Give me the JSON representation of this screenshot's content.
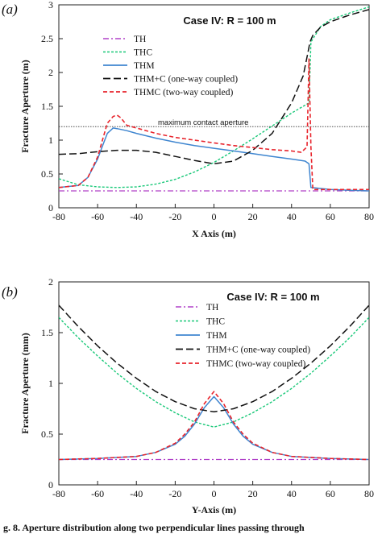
{
  "caption": "g. 8. Aperture distribution along two perpendicular lines passing through",
  "series_styles": [
    {
      "key": "TH",
      "color": "#b040c8",
      "dash": "7,3,2,3",
      "width": 1.2
    },
    {
      "key": "THC",
      "color": "#18c878",
      "dash": "3,2",
      "width": 1.4
    },
    {
      "key": "THM",
      "color": "#3f86d0",
      "dash": "",
      "width": 1.5
    },
    {
      "key": "THM+C",
      "color": "#111111",
      "dash": "9,4",
      "width": 1.5
    },
    {
      "key": "THMC",
      "color": "#e8242c",
      "dash": "5,3",
      "width": 1.6
    }
  ],
  "chart_data": [
    {
      "type": "line",
      "panel_label": "(a)",
      "title": "Case IV: R = 100 m",
      "xlabel": "X Axis (m)",
      "ylabel": "Fracture Aperture (m)",
      "xlim": [
        -80,
        80
      ],
      "ylim": [
        0,
        3
      ],
      "xticks": [
        -80,
        -60,
        -40,
        -20,
        0,
        20,
        40,
        60,
        80
      ],
      "yticks": [
        0,
        0.5,
        1,
        1.5,
        2,
        2.5,
        3
      ],
      "ytick_labels": [
        "0",
        "0.5",
        "1",
        "1.5",
        "2",
        "2.5",
        "3"
      ],
      "grid": false,
      "legend_position": "upper-left",
      "annotations": [
        {
          "text": "maximum contact aperture",
          "y": 1.2
        }
      ],
      "series": [
        {
          "name": "TH",
          "x": [
            -80,
            80
          ],
          "y": [
            0.25,
            0.25
          ]
        },
        {
          "name": "THC",
          "x": [
            -80,
            -70,
            -60,
            -50,
            -40,
            -30,
            -20,
            -10,
            0,
            10,
            20,
            30,
            40,
            49,
            50,
            55,
            60,
            70,
            80
          ],
          "y": [
            0.43,
            0.34,
            0.31,
            0.3,
            0.31,
            0.35,
            0.42,
            0.53,
            0.67,
            0.84,
            1.02,
            1.21,
            1.4,
            1.55,
            2.45,
            2.68,
            2.78,
            2.88,
            2.97
          ]
        },
        {
          "name": "THM",
          "x": [
            -80,
            -70,
            -65,
            -60,
            -57,
            -55,
            -52,
            -50,
            -45,
            -40,
            -30,
            -20,
            -10,
            0,
            10,
            20,
            30,
            40,
            47,
            49,
            50,
            60,
            70,
            80
          ],
          "y": [
            0.3,
            0.33,
            0.45,
            0.72,
            0.95,
            1.1,
            1.18,
            1.17,
            1.14,
            1.1,
            1.03,
            0.97,
            0.92,
            0.88,
            0.84,
            0.8,
            0.76,
            0.72,
            0.69,
            0.65,
            0.3,
            0.27,
            0.26,
            0.25
          ]
        },
        {
          "name": "THM+C (one-way coupled)",
          "x": [
            -80,
            -70,
            -60,
            -50,
            -40,
            -30,
            -20,
            -10,
            0,
            10,
            20,
            30,
            40,
            46,
            48.5,
            49.5,
            51,
            55,
            60,
            70,
            80
          ],
          "y": [
            0.79,
            0.8,
            0.83,
            0.85,
            0.85,
            0.82,
            0.76,
            0.7,
            0.65,
            0.69,
            0.85,
            1.1,
            1.55,
            1.95,
            2.3,
            2.45,
            2.55,
            2.67,
            2.75,
            2.85,
            2.93
          ]
        },
        {
          "name": "THMC (two-way coupled)",
          "x": [
            -80,
            -70,
            -65,
            -60,
            -57,
            -55,
            -52,
            -50,
            -48,
            -45,
            -40,
            -30,
            -20,
            -10,
            0,
            10,
            20,
            30,
            40,
            45,
            48,
            49,
            50,
            51,
            60,
            70,
            80
          ],
          "y": [
            0.3,
            0.33,
            0.45,
            0.75,
            1.05,
            1.25,
            1.35,
            1.37,
            1.33,
            1.22,
            1.18,
            1.1,
            1.04,
            1.0,
            0.96,
            0.92,
            0.89,
            0.86,
            0.84,
            0.82,
            0.9,
            2.2,
            0.9,
            0.27,
            0.27,
            0.27,
            0.27
          ]
        }
      ]
    },
    {
      "type": "line",
      "panel_label": "(b)",
      "title": "Case IV: R = 100 m",
      "xlabel": "Y-Axis (m)",
      "ylabel": "Fracture Aperture (mm)",
      "xlim": [
        -80,
        80
      ],
      "ylim": [
        0,
        2
      ],
      "xticks": [
        -80,
        -60,
        -40,
        -20,
        0,
        20,
        40,
        60,
        80
      ],
      "yticks": [
        0,
        0.5,
        1,
        1.5,
        2
      ],
      "ytick_labels": [
        "0",
        "0.5",
        "1",
        "1.5",
        "2"
      ],
      "grid": false,
      "legend_position": "upper-center",
      "annotations": [],
      "series": [
        {
          "name": "TH",
          "x": [
            -80,
            80
          ],
          "y": [
            0.25,
            0.25
          ]
        },
        {
          "name": "THC",
          "x": [
            -80,
            -70,
            -60,
            -50,
            -40,
            -30,
            -20,
            -10,
            0,
            10,
            20,
            30,
            40,
            50,
            60,
            70,
            80
          ],
          "y": [
            1.65,
            1.45,
            1.27,
            1.1,
            0.95,
            0.82,
            0.71,
            0.62,
            0.57,
            0.62,
            0.71,
            0.82,
            0.95,
            1.1,
            1.27,
            1.45,
            1.65
          ]
        },
        {
          "name": "THM",
          "x": [
            -80,
            -60,
            -40,
            -30,
            -20,
            -15,
            -10,
            -5,
            0,
            5,
            10,
            15,
            20,
            30,
            40,
            60,
            80
          ],
          "y": [
            0.25,
            0.26,
            0.28,
            0.32,
            0.4,
            0.48,
            0.6,
            0.76,
            0.87,
            0.76,
            0.6,
            0.48,
            0.4,
            0.32,
            0.28,
            0.26,
            0.25
          ]
        },
        {
          "name": "THM+C (one-way coupled)",
          "x": [
            -80,
            -70,
            -60,
            -50,
            -40,
            -30,
            -20,
            -10,
            0,
            10,
            20,
            30,
            40,
            50,
            60,
            70,
            80
          ],
          "y": [
            1.77,
            1.56,
            1.37,
            1.2,
            1.05,
            0.92,
            0.82,
            0.75,
            0.72,
            0.75,
            0.82,
            0.92,
            1.05,
            1.2,
            1.37,
            1.56,
            1.77
          ]
        },
        {
          "name": "THMC (two-way coupled)",
          "x": [
            -80,
            -60,
            -40,
            -30,
            -20,
            -15,
            -10,
            -5,
            0,
            5,
            10,
            15,
            20,
            30,
            40,
            60,
            80
          ],
          "y": [
            0.25,
            0.26,
            0.28,
            0.32,
            0.41,
            0.5,
            0.62,
            0.8,
            0.92,
            0.8,
            0.62,
            0.5,
            0.41,
            0.32,
            0.28,
            0.26,
            0.25
          ]
        }
      ]
    }
  ]
}
